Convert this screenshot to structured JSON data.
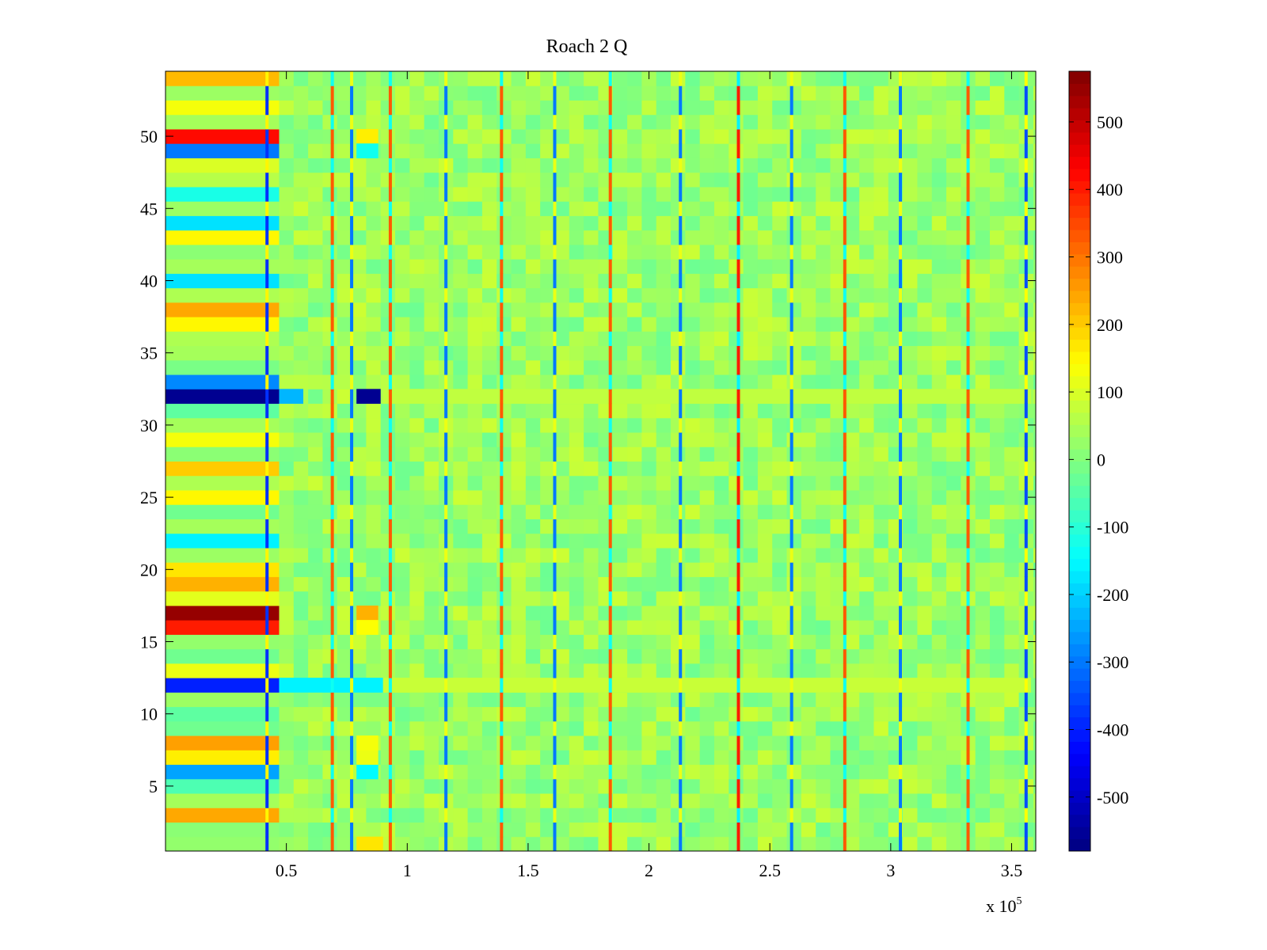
{
  "chart_data": {
    "type": "heatmap",
    "title": "Roach 2 Q",
    "xlabel": "",
    "ylabel": "",
    "x_multiplier_label": "x 10",
    "x_multiplier_exponent": "5",
    "xlim": [
      0,
      3.6
    ],
    "ylim": [
      0.5,
      54.5
    ],
    "x_ticks": [
      {
        "value": 0.5,
        "label": "0.5"
      },
      {
        "value": 1,
        "label": "1"
      },
      {
        "value": 1.5,
        "label": "1.5"
      },
      {
        "value": 2,
        "label": "2"
      },
      {
        "value": 2.5,
        "label": "2.5"
      },
      {
        "value": 3,
        "label": "3"
      },
      {
        "value": 3.5,
        "label": "3.5"
      }
    ],
    "y_ticks": [
      {
        "value": 5,
        "label": "5"
      },
      {
        "value": 10,
        "label": "10"
      },
      {
        "value": 15,
        "label": "15"
      },
      {
        "value": 20,
        "label": "20"
      },
      {
        "value": 25,
        "label": "25"
      },
      {
        "value": 30,
        "label": "30"
      },
      {
        "value": 35,
        "label": "35"
      },
      {
        "value": 40,
        "label": "40"
      },
      {
        "value": 45,
        "label": "45"
      },
      {
        "value": 50,
        "label": "50"
      }
    ],
    "colorbar": {
      "range": [
        -580,
        575
      ],
      "colormap": "jet",
      "ticks": [
        {
          "value": 500,
          "label": "500"
        },
        {
          "value": 400,
          "label": "400"
        },
        {
          "value": 300,
          "label": "300"
        },
        {
          "value": 200,
          "label": "200"
        },
        {
          "value": 100,
          "label": "100"
        },
        {
          "value": 0,
          "label": "0"
        },
        {
          "value": -100,
          "label": "-100"
        },
        {
          "value": -200,
          "label": "-200"
        },
        {
          "value": -300,
          "label": "-300"
        },
        {
          "value": -400,
          "label": "-400"
        },
        {
          "value": -500,
          "label": "-500"
        }
      ]
    },
    "rows": 54,
    "background_value": 30,
    "initial_segment_end": 0.47,
    "initial_segment_row_values": {
      "1": 20,
      "2": 10,
      "3": 240,
      "4": 40,
      "5": -60,
      "6": -250,
      "7": 160,
      "8": 250,
      "9": -20,
      "10": -40,
      "11": 30,
      "12": -400,
      "13": 120,
      "14": -20,
      "15": 20,
      "16": 400,
      "17": 550,
      "18": 110,
      "19": 230,
      "20": 170,
      "21": 30,
      "22": -160,
      "23": 40,
      "24": -20,
      "25": 150,
      "26": 50,
      "27": 200,
      "28": 10,
      "29": 130,
      "30": 40,
      "31": -40,
      "32": -560,
      "33": -280,
      "34": -10,
      "35": 40,
      "36": 50,
      "37": 150,
      "38": 240,
      "39": 50,
      "40": -180,
      "41": 40,
      "42": 10,
      "43": 150,
      "44": -180,
      "45": 30,
      "46": -120,
      "47": 60,
      "48": 100,
      "49": -300,
      "50": 420,
      "51": 40,
      "52": 130,
      "53": 30,
      "54": 220
    },
    "row_stripes": [
      {
        "row": 32,
        "x_range": [
          0.47,
          0.57
        ],
        "value": -230
      },
      {
        "row": 32,
        "x_range": [
          0.79,
          0.89
        ],
        "value": -560
      },
      {
        "row": 12,
        "x_range": [
          0.47,
          0.9
        ],
        "value": -160
      },
      {
        "row": 12,
        "x_range": [
          0.9,
          3.58
        ],
        "value": 80
      },
      {
        "row": 32,
        "x_range": [
          0.9,
          3.58
        ],
        "value": 70
      },
      {
        "row": 17,
        "x_range": [
          0.79,
          0.88
        ],
        "value": 230
      },
      {
        "row": 16,
        "x_range": [
          0.79,
          0.88
        ],
        "value": 140
      },
      {
        "row": 50,
        "x_range": [
          0.79,
          0.88
        ],
        "value": 160
      },
      {
        "row": 49,
        "x_range": [
          0.79,
          0.88
        ],
        "value": -130
      },
      {
        "row": 6,
        "x_range": [
          0.79,
          0.88
        ],
        "value": -150
      },
      {
        "row": 7,
        "x_range": [
          0.79,
          0.88
        ],
        "value": 120
      },
      {
        "row": 8,
        "x_range": [
          0.79,
          0.88
        ],
        "value": 130
      },
      {
        "row": 1,
        "x_range": [
          0.79,
          0.9
        ],
        "value": 170
      }
    ],
    "vertical_spikes": [
      {
        "x": 0.42,
        "value": -380
      },
      {
        "x": 0.69,
        "value": 330
      },
      {
        "x": 0.77,
        "value": -300
      },
      {
        "x": 0.93,
        "value": 330
      },
      {
        "x": 1.16,
        "value": -300
      },
      {
        "x": 1.39,
        "value": 330
      },
      {
        "x": 1.61,
        "value": -300
      },
      {
        "x": 1.84,
        "value": 330
      },
      {
        "x": 2.13,
        "value": -300
      },
      {
        "x": 2.37,
        "value": 400
      },
      {
        "x": 2.59,
        "value": -300
      },
      {
        "x": 2.81,
        "value": 330
      },
      {
        "x": 3.04,
        "value": -300
      },
      {
        "x": 3.32,
        "value": 330
      },
      {
        "x": 3.56,
        "value": -350
      }
    ]
  }
}
